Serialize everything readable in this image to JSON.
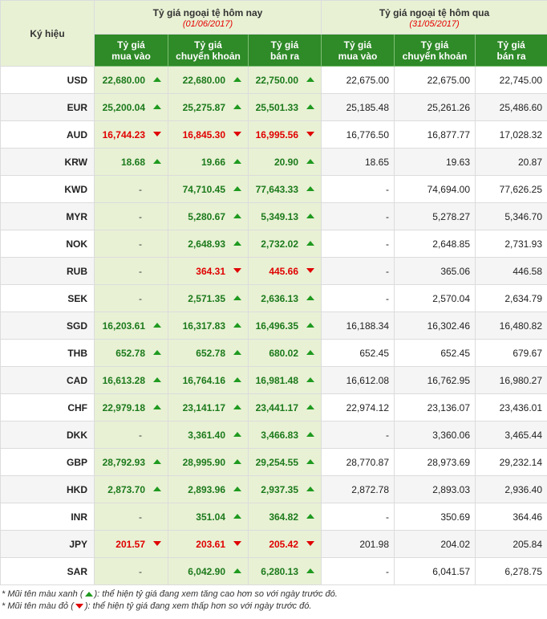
{
  "header": {
    "symbol": "Ký hiệu",
    "today_title": "Tỷ giá ngoại tệ hôm nay",
    "today_date": "(01/06/2017)",
    "yesterday_title": "Tỷ giá ngoại tệ hôm qua",
    "yesterday_date": "(31/05/2017)",
    "col_buy": [
      "Tỷ giá",
      "mua vào"
    ],
    "col_transfer": [
      "Tỷ giá",
      "chuyển khoản"
    ],
    "col_sell": [
      "Tỷ giá",
      "bán ra"
    ]
  },
  "colors": {
    "up": "#1f9a1f",
    "down": "#e00000",
    "header_green": "#2f8a28",
    "header_light": "#e8f1d4"
  },
  "rows": [
    {
      "code": "USD",
      "today": [
        {
          "v": "22,680.00",
          "d": "up"
        },
        {
          "v": "22,680.00",
          "d": "up"
        },
        {
          "v": "22,750.00",
          "d": "up"
        }
      ],
      "yesterday": [
        "22,675.00",
        "22,675.00",
        "22,745.00"
      ]
    },
    {
      "code": "EUR",
      "today": [
        {
          "v": "25,200.04",
          "d": "up"
        },
        {
          "v": "25,275.87",
          "d": "up"
        },
        {
          "v": "25,501.33",
          "d": "up"
        }
      ],
      "yesterday": [
        "25,185.48",
        "25,261.26",
        "25,486.60"
      ]
    },
    {
      "code": "AUD",
      "today": [
        {
          "v": "16,744.23",
          "d": "down"
        },
        {
          "v": "16,845.30",
          "d": "down"
        },
        {
          "v": "16,995.56",
          "d": "down"
        }
      ],
      "yesterday": [
        "16,776.50",
        "16,877.77",
        "17,028.32"
      ]
    },
    {
      "code": "KRW",
      "today": [
        {
          "v": "18.68",
          "d": "up"
        },
        {
          "v": "19.66",
          "d": "up"
        },
        {
          "v": "20.90",
          "d": "up"
        }
      ],
      "yesterday": [
        "18.65",
        "19.63",
        "20.87"
      ]
    },
    {
      "code": "KWD",
      "today": [
        {
          "v": "-",
          "d": "none"
        },
        {
          "v": "74,710.45",
          "d": "up"
        },
        {
          "v": "77,643.33",
          "d": "up"
        }
      ],
      "yesterday": [
        "-",
        "74,694.00",
        "77,626.25"
      ]
    },
    {
      "code": "MYR",
      "today": [
        {
          "v": "-",
          "d": "none"
        },
        {
          "v": "5,280.67",
          "d": "up"
        },
        {
          "v": "5,349.13",
          "d": "up"
        }
      ],
      "yesterday": [
        "-",
        "5,278.27",
        "5,346.70"
      ]
    },
    {
      "code": "NOK",
      "today": [
        {
          "v": "-",
          "d": "none"
        },
        {
          "v": "2,648.93",
          "d": "up"
        },
        {
          "v": "2,732.02",
          "d": "up"
        }
      ],
      "yesterday": [
        "-",
        "2,648.85",
        "2,731.93"
      ]
    },
    {
      "code": "RUB",
      "today": [
        {
          "v": "-",
          "d": "none"
        },
        {
          "v": "364.31",
          "d": "down"
        },
        {
          "v": "445.66",
          "d": "down"
        }
      ],
      "yesterday": [
        "-",
        "365.06",
        "446.58"
      ]
    },
    {
      "code": "SEK",
      "today": [
        {
          "v": "-",
          "d": "none"
        },
        {
          "v": "2,571.35",
          "d": "up"
        },
        {
          "v": "2,636.13",
          "d": "up"
        }
      ],
      "yesterday": [
        "-",
        "2,570.04",
        "2,634.79"
      ]
    },
    {
      "code": "SGD",
      "today": [
        {
          "v": "16,203.61",
          "d": "up"
        },
        {
          "v": "16,317.83",
          "d": "up"
        },
        {
          "v": "16,496.35",
          "d": "up"
        }
      ],
      "yesterday": [
        "16,188.34",
        "16,302.46",
        "16,480.82"
      ]
    },
    {
      "code": "THB",
      "today": [
        {
          "v": "652.78",
          "d": "up"
        },
        {
          "v": "652.78",
          "d": "up"
        },
        {
          "v": "680.02",
          "d": "up"
        }
      ],
      "yesterday": [
        "652.45",
        "652.45",
        "679.67"
      ]
    },
    {
      "code": "CAD",
      "today": [
        {
          "v": "16,613.28",
          "d": "up"
        },
        {
          "v": "16,764.16",
          "d": "up"
        },
        {
          "v": "16,981.48",
          "d": "up"
        }
      ],
      "yesterday": [
        "16,612.08",
        "16,762.95",
        "16,980.27"
      ]
    },
    {
      "code": "CHF",
      "today": [
        {
          "v": "22,979.18",
          "d": "up"
        },
        {
          "v": "23,141.17",
          "d": "up"
        },
        {
          "v": "23,441.17",
          "d": "up"
        }
      ],
      "yesterday": [
        "22,974.12",
        "23,136.07",
        "23,436.01"
      ]
    },
    {
      "code": "DKK",
      "today": [
        {
          "v": "-",
          "d": "none"
        },
        {
          "v": "3,361.40",
          "d": "up"
        },
        {
          "v": "3,466.83",
          "d": "up"
        }
      ],
      "yesterday": [
        "-",
        "3,360.06",
        "3,465.44"
      ]
    },
    {
      "code": "GBP",
      "today": [
        {
          "v": "28,792.93",
          "d": "up"
        },
        {
          "v": "28,995.90",
          "d": "up"
        },
        {
          "v": "29,254.55",
          "d": "up"
        }
      ],
      "yesterday": [
        "28,770.87",
        "28,973.69",
        "29,232.14"
      ]
    },
    {
      "code": "HKD",
      "today": [
        {
          "v": "2,873.70",
          "d": "up"
        },
        {
          "v": "2,893.96",
          "d": "up"
        },
        {
          "v": "2,937.35",
          "d": "up"
        }
      ],
      "yesterday": [
        "2,872.78",
        "2,893.03",
        "2,936.40"
      ]
    },
    {
      "code": "INR",
      "today": [
        {
          "v": "-",
          "d": "none"
        },
        {
          "v": "351.04",
          "d": "up"
        },
        {
          "v": "364.82",
          "d": "up"
        }
      ],
      "yesterday": [
        "-",
        "350.69",
        "364.46"
      ]
    },
    {
      "code": "JPY",
      "today": [
        {
          "v": "201.57",
          "d": "down"
        },
        {
          "v": "203.61",
          "d": "down"
        },
        {
          "v": "205.42",
          "d": "down"
        }
      ],
      "yesterday": [
        "201.98",
        "204.02",
        "205.84"
      ]
    },
    {
      "code": "SAR",
      "today": [
        {
          "v": "-",
          "d": "none"
        },
        {
          "v": "6,042.90",
          "d": "up"
        },
        {
          "v": "6,280.13",
          "d": "up"
        }
      ],
      "yesterday": [
        "-",
        "6,041.57",
        "6,278.75"
      ]
    }
  ],
  "notes": {
    "green_prefix": "* Mũi tên màu xanh (",
    "green_suffix": "): thể hiện tỷ giá đang xem tăng cao hơn so với ngày trước đó.",
    "red_prefix": "* Mũi tên màu đỏ (",
    "red_suffix": "): thể hiện tỷ giá đang xem thấp hơn so với ngày trước đó."
  }
}
